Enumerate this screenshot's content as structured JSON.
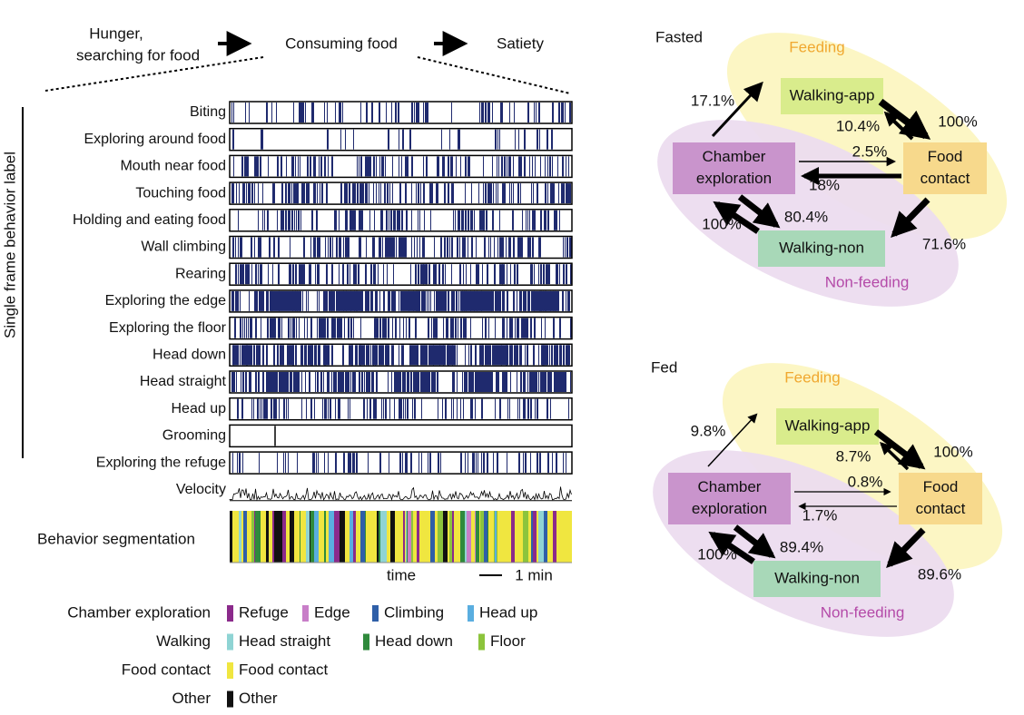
{
  "header": {
    "steps": [
      [
        "Hunger,",
        "searching for food"
      ],
      [
        "Consuming food"
      ],
      [
        "Satiety"
      ]
    ]
  },
  "raster": {
    "y_label": "Single frame behavior label",
    "rows": [
      "Biting",
      "Exploring around food",
      "Mouth near food",
      "Touching food",
      "Holding and eating food",
      "Wall climbing",
      "Rearing",
      "Exploring the edge",
      "Exploring the floor",
      "Head down",
      "Head straight",
      "Head up",
      "Grooming",
      "Exploring the refuge",
      "Velocity"
    ],
    "segmentation_label": "Behavior segmentation",
    "x_label": "time",
    "scale_label": "1 min",
    "event_color": "#1f2a6e"
  },
  "legend": {
    "groups": [
      {
        "name": "Chamber exploration",
        "items": [
          {
            "label": "Refuge",
            "color": "#8b2a8b"
          },
          {
            "label": "Edge",
            "color": "#c87ec8"
          },
          {
            "label": "Climbing",
            "color": "#2f5fa8"
          },
          {
            "label": "Head up",
            "color": "#5aaee0"
          }
        ]
      },
      {
        "name": "Walking",
        "items": [
          {
            "label": "Head straight",
            "color": "#8fd4d4"
          },
          {
            "label": "Head down",
            "color": "#2f8a3c"
          },
          {
            "label": "Floor",
            "color": "#8cc43c"
          }
        ]
      },
      {
        "name": "Food contact",
        "items": [
          {
            "label": "Food contact",
            "color": "#f0e640"
          }
        ]
      },
      {
        "name": "Other",
        "items": [
          {
            "label": "Other",
            "color": "#111111"
          }
        ]
      }
    ]
  },
  "diagrams": [
    {
      "title": "Fasted",
      "feeding_label": "Feeding",
      "nonfeeding_label": "Non-feeding",
      "nodes": {
        "walking_app": [
          "Walking-app"
        ],
        "chamber": [
          "Chamber",
          "exploration"
        ],
        "food": [
          "Food",
          "contact"
        ],
        "walking_non": [
          "Walking-non"
        ]
      },
      "edges": {
        "chamber_to_app": "17.1%",
        "food_to_app": "10.4%",
        "app_to_food": "100%",
        "chamber_to_food": "2.5%",
        "food_to_chamber": "18%",
        "non_to_chamber": "100%",
        "chamber_to_non": "80.4%",
        "food_to_non": "71.6%"
      }
    },
    {
      "title": "Fed",
      "feeding_label": "Feeding",
      "nonfeeding_label": "Non-feeding",
      "nodes": {
        "walking_app": [
          "Walking-app"
        ],
        "chamber": [
          "Chamber",
          "exploration"
        ],
        "food": [
          "Food",
          "contact"
        ],
        "walking_non": [
          "Walking-non"
        ]
      },
      "edges": {
        "chamber_to_app": "9.8%",
        "food_to_app": "8.7%",
        "app_to_food": "100%",
        "chamber_to_food": "0.8%",
        "food_to_chamber": "1.7%",
        "non_to_chamber": "100%",
        "chamber_to_non": "89.4%",
        "food_to_non": "89.6%"
      }
    }
  ]
}
